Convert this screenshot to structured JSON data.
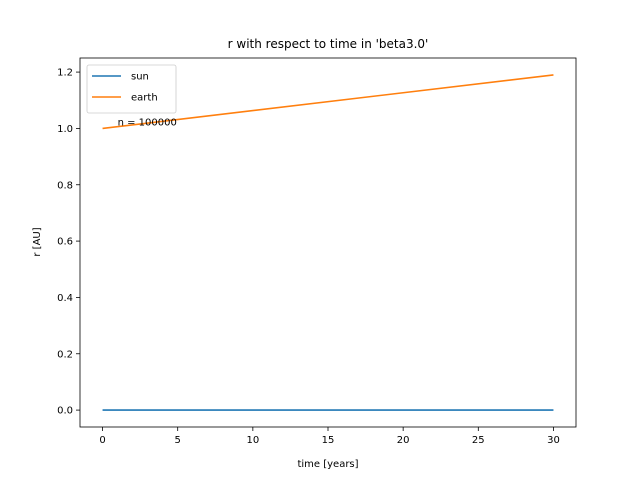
{
  "chart_data": {
    "type": "line",
    "title": "r with respect to time in 'beta3.0'",
    "xlabel": "time [years]",
    "ylabel": "r [AU]",
    "xlim": [
      -1.5,
      31.5
    ],
    "ylim": [
      -0.06,
      1.25
    ],
    "xticks": [
      0,
      5,
      10,
      15,
      20,
      25,
      30
    ],
    "yticks": [
      0.0,
      0.2,
      0.4,
      0.6,
      0.8,
      1.0,
      1.2
    ],
    "xtick_labels": [
      "0",
      "5",
      "10",
      "15",
      "20",
      "25",
      "30"
    ],
    "ytick_labels": [
      "0.0",
      "0.2",
      "0.4",
      "0.6",
      "0.8",
      "1.0",
      "1.2"
    ],
    "grid": false,
    "legend_position": "top-left",
    "series": [
      {
        "name": "sun",
        "color": "#1f77b4",
        "x": [
          0,
          30
        ],
        "y": [
          0.0,
          0.0
        ]
      },
      {
        "name": "earth",
        "color": "#ff7f0e",
        "x": [
          0,
          30
        ],
        "y": [
          1.0,
          1.19
        ]
      }
    ],
    "annotations": [
      {
        "text": "n = 100000",
        "x": 1,
        "y": 1.01
      }
    ]
  }
}
